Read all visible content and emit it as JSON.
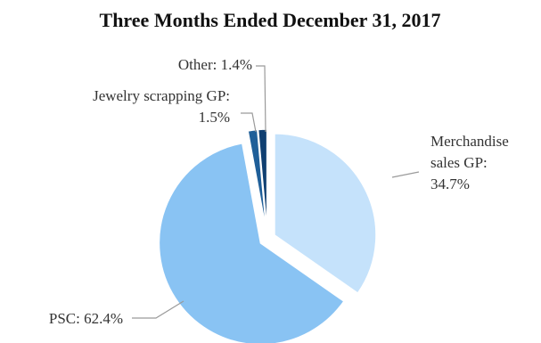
{
  "chart_data": {
    "type": "pie",
    "title": "Three Months Ended December 31, 2017",
    "slices": [
      {
        "label_lines": [
          "Merchandise",
          "sales GP:",
          "34.7%"
        ],
        "value": 34.7,
        "color": "#c5e2fb",
        "exploded": true
      },
      {
        "label_lines": [
          "PSC: 62.4%"
        ],
        "value": 62.4,
        "color": "#89c3f3",
        "exploded": true
      },
      {
        "label_lines": [
          "Jewelry scrapping GP:",
          "1.5%"
        ],
        "value": 1.5,
        "color": "#1f5f99",
        "exploded": true
      },
      {
        "label_lines": [
          "Other: 1.4%"
        ],
        "value": 1.4,
        "color": "#0f3f71",
        "exploded": true
      }
    ]
  }
}
